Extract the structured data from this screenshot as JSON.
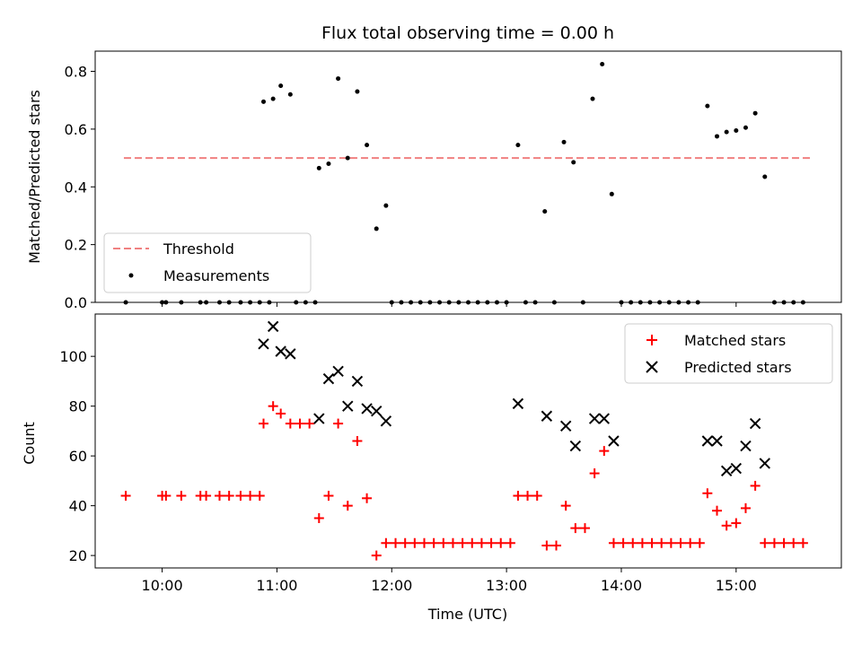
{
  "chart_data": [
    {
      "type": "scatter",
      "title": "Flux total observing time = 0.00 h",
      "xlabel": "",
      "ylabel": "Matched/Predicted stars",
      "xlim": [
        "09:25",
        "15:55"
      ],
      "ylim": [
        0,
        0.87
      ],
      "yticks": [
        0.0,
        0.2,
        0.4,
        0.6,
        0.8
      ],
      "ytick_labels": [
        "0.0",
        "0.2",
        "0.4",
        "0.6",
        "0.8"
      ],
      "legend_position": "lower-left",
      "threshold": {
        "name": "Threshold",
        "y": 0.5,
        "x_range": [
          "09:40",
          "15:40"
        ],
        "color": "#f08080"
      },
      "series": [
        {
          "name": "Measurements",
          "color": "#000000",
          "marker": "dot",
          "points": [
            [
              "09:41",
              0
            ],
            [
              "10:00",
              0
            ],
            [
              "10:02",
              0
            ],
            [
              "10:10",
              0
            ],
            [
              "10:20",
              0
            ],
            [
              "10:23",
              0
            ],
            [
              "10:30",
              0
            ],
            [
              "10:35",
              0
            ],
            [
              "10:41",
              0
            ],
            [
              "10:46",
              0
            ],
            [
              "10:51",
              0
            ],
            [
              "10:56",
              0
            ],
            [
              "10:53",
              0.695
            ],
            [
              "10:58",
              0.705
            ],
            [
              "11:02",
              0.75
            ],
            [
              "11:07",
              0.72
            ],
            [
              "11:10",
              0
            ],
            [
              "11:15",
              0
            ],
            [
              "11:20",
              0
            ],
            [
              "11:22",
              0.465
            ],
            [
              "11:27",
              0.48
            ],
            [
              "11:32",
              0.775
            ],
            [
              "11:37",
              0.5
            ],
            [
              "11:42",
              0.73
            ],
            [
              "11:47",
              0.545
            ],
            [
              "11:52",
              0.255
            ],
            [
              "11:57",
              0.335
            ],
            [
              "12:00",
              0
            ],
            [
              "12:05",
              0
            ],
            [
              "12:10",
              0
            ],
            [
              "12:15",
              0
            ],
            [
              "12:20",
              0
            ],
            [
              "12:25",
              0
            ],
            [
              "12:30",
              0
            ],
            [
              "12:35",
              0
            ],
            [
              "12:40",
              0
            ],
            [
              "12:45",
              0
            ],
            [
              "12:50",
              0
            ],
            [
              "12:55",
              0
            ],
            [
              "13:00",
              0
            ],
            [
              "13:06",
              0.545
            ],
            [
              "13:10",
              0
            ],
            [
              "13:15",
              0
            ],
            [
              "13:20",
              0.315
            ],
            [
              "13:25",
              0
            ],
            [
              "13:30",
              0.555
            ],
            [
              "13:35",
              0.485
            ],
            [
              "13:40",
              0
            ],
            [
              "13:45",
              0.705
            ],
            [
              "13:50",
              0.825
            ],
            [
              "13:55",
              0.375
            ],
            [
              "14:00",
              0
            ],
            [
              "14:05",
              0
            ],
            [
              "14:10",
              0
            ],
            [
              "14:15",
              0
            ],
            [
              "14:20",
              0
            ],
            [
              "14:25",
              0
            ],
            [
              "14:30",
              0
            ],
            [
              "14:35",
              0
            ],
            [
              "14:40",
              0
            ],
            [
              "14:45",
              0.68
            ],
            [
              "14:50",
              0.575
            ],
            [
              "14:55",
              0.59
            ],
            [
              "15:00",
              0.595
            ],
            [
              "15:05",
              0.605
            ],
            [
              "15:10",
              0.655
            ],
            [
              "15:15",
              0.435
            ],
            [
              "15:20",
              0
            ],
            [
              "15:25",
              0
            ],
            [
              "15:30",
              0
            ],
            [
              "15:35",
              0
            ]
          ]
        }
      ]
    },
    {
      "type": "scatter",
      "title": "",
      "xlabel": "Time (UTC)",
      "ylabel": "Count",
      "xlim": [
        "09:25",
        "15:55"
      ],
      "ylim": [
        15,
        117
      ],
      "yticks": [
        20,
        40,
        60,
        80,
        100
      ],
      "ytick_labels": [
        "20",
        "40",
        "60",
        "80",
        "100"
      ],
      "xticks": [
        "10:00",
        "11:00",
        "12:00",
        "13:00",
        "14:00",
        "15:00"
      ],
      "xtick_labels": [
        "10:00",
        "11:00",
        "12:00",
        "13:00",
        "14:00",
        "15:00"
      ],
      "legend_position": "top-right",
      "series": [
        {
          "name": "Matched stars",
          "color": "#ff0000",
          "marker": "plus",
          "points": [
            [
              "09:41",
              44
            ],
            [
              "10:00",
              44
            ],
            [
              "10:02",
              44
            ],
            [
              "10:10",
              44
            ],
            [
              "10:20",
              44
            ],
            [
              "10:23",
              44
            ],
            [
              "10:30",
              44
            ],
            [
              "10:35",
              44
            ],
            [
              "10:41",
              44
            ],
            [
              "10:46",
              44
            ],
            [
              "10:51",
              44
            ],
            [
              "10:53",
              73
            ],
            [
              "10:58",
              80
            ],
            [
              "11:02",
              77
            ],
            [
              "11:07",
              73
            ],
            [
              "11:12",
              73
            ],
            [
              "11:17",
              73
            ],
            [
              "11:22",
              35
            ],
            [
              "11:27",
              44
            ],
            [
              "11:32",
              73
            ],
            [
              "11:37",
              40
            ],
            [
              "11:42",
              66
            ],
            [
              "11:47",
              43
            ],
            [
              "11:52",
              20
            ],
            [
              "11:57",
              25
            ],
            [
              "12:02",
              25
            ],
            [
              "12:07",
              25
            ],
            [
              "12:12",
              25
            ],
            [
              "12:17",
              25
            ],
            [
              "12:22",
              25
            ],
            [
              "12:27",
              25
            ],
            [
              "12:32",
              25
            ],
            [
              "12:37",
              25
            ],
            [
              "12:42",
              25
            ],
            [
              "12:47",
              25
            ],
            [
              "12:52",
              25
            ],
            [
              "12:57",
              25
            ],
            [
              "13:02",
              25
            ],
            [
              "13:06",
              44
            ],
            [
              "13:11",
              44
            ],
            [
              "13:16",
              44
            ],
            [
              "13:21",
              24
            ],
            [
              "13:26",
              24
            ],
            [
              "13:31",
              40
            ],
            [
              "13:36",
              31
            ],
            [
              "13:41",
              31
            ],
            [
              "13:46",
              53
            ],
            [
              "13:51",
              62
            ],
            [
              "13:56",
              25
            ],
            [
              "14:01",
              25
            ],
            [
              "14:06",
              25
            ],
            [
              "14:11",
              25
            ],
            [
              "14:16",
              25
            ],
            [
              "14:21",
              25
            ],
            [
              "14:26",
              25
            ],
            [
              "14:31",
              25
            ],
            [
              "14:36",
              25
            ],
            [
              "14:41",
              25
            ],
            [
              "14:45",
              45
            ],
            [
              "14:50",
              38
            ],
            [
              "14:55",
              32
            ],
            [
              "15:00",
              33
            ],
            [
              "15:05",
              39
            ],
            [
              "15:10",
              48
            ],
            [
              "15:15",
              25
            ],
            [
              "15:20",
              25
            ],
            [
              "15:25",
              25
            ],
            [
              "15:30",
              25
            ],
            [
              "15:35",
              25
            ]
          ]
        },
        {
          "name": "Predicted stars",
          "color": "#000000",
          "marker": "x",
          "points": [
            [
              "10:53",
              105
            ],
            [
              "10:58",
              112
            ],
            [
              "11:02",
              102
            ],
            [
              "11:07",
              101
            ],
            [
              "11:22",
              75
            ],
            [
              "11:27",
              91
            ],
            [
              "11:32",
              94
            ],
            [
              "11:37",
              80
            ],
            [
              "11:42",
              90
            ],
            [
              "11:47",
              79
            ],
            [
              "11:52",
              78
            ],
            [
              "11:57",
              74
            ],
            [
              "13:06",
              81
            ],
            [
              "13:21",
              76
            ],
            [
              "13:31",
              72
            ],
            [
              "13:36",
              64
            ],
            [
              "13:46",
              75
            ],
            [
              "13:51",
              75
            ],
            [
              "13:56",
              66
            ],
            [
              "14:45",
              66
            ],
            [
              "14:50",
              66
            ],
            [
              "14:55",
              54
            ],
            [
              "15:00",
              55
            ],
            [
              "15:05",
              64
            ],
            [
              "15:10",
              73
            ],
            [
              "15:15",
              57
            ]
          ]
        }
      ]
    }
  ]
}
